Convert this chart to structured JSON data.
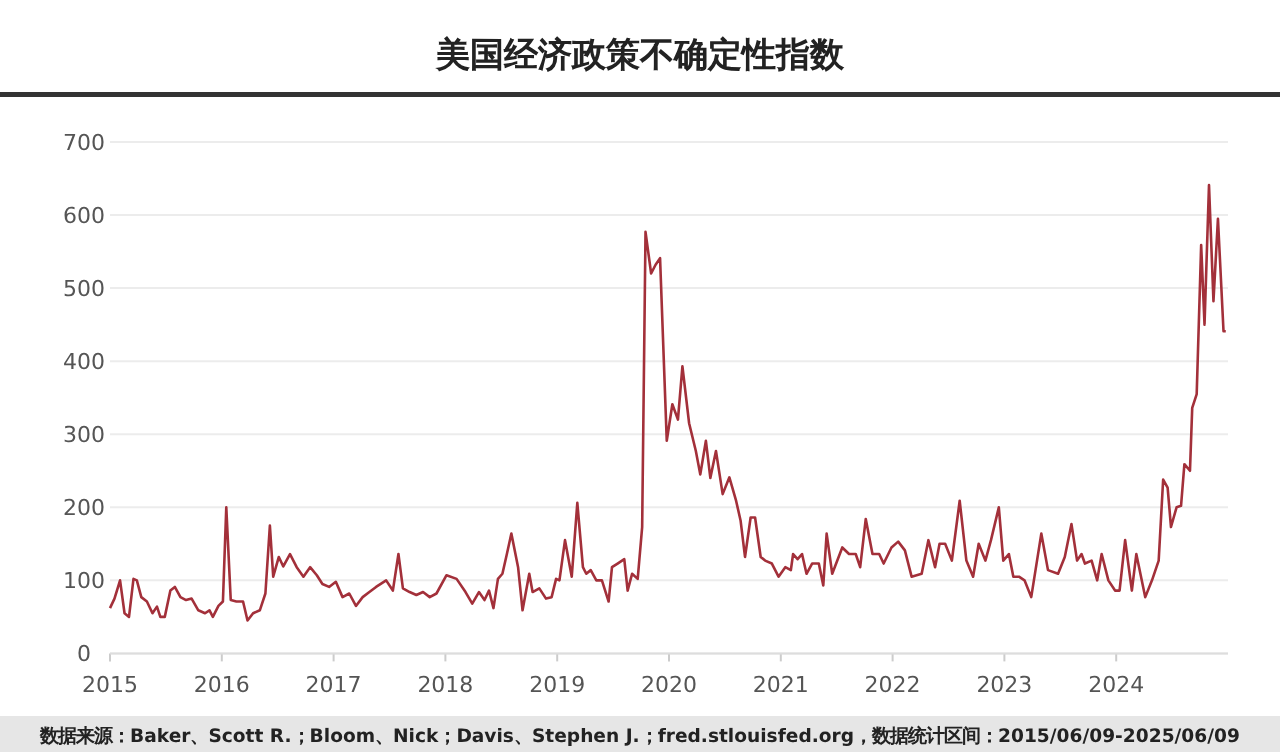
{
  "chart_data": {
    "type": "line",
    "title": "美国经济政策不确定性指数",
    "annotations": [
      "数据来源：Baker、Scott R.；Bloom、Nick；Davis、Stephen J.；fred.stlouisfed.org，数据统计区间：2015/06/09-2025/06/09"
    ],
    "x": [
      2015.0,
      2015.04,
      2015.09,
      2015.13,
      2015.17,
      2015.21,
      2015.24,
      2015.28,
      2015.33,
      2015.38,
      2015.42,
      2015.45,
      2015.49,
      2015.54,
      2015.58,
      2015.63,
      2015.68,
      2015.73,
      2015.79,
      2015.85,
      2015.89,
      2015.92,
      2015.97,
      2016.01,
      2016.04,
      2016.08,
      2016.13,
      2016.19,
      2016.23,
      2016.28,
      2016.34,
      2016.39,
      2016.43,
      2016.46,
      2016.51,
      2016.55,
      2016.61,
      2016.67,
      2016.73,
      2016.79,
      2016.85,
      2016.9,
      2016.96,
      2017.02,
      2017.08,
      2017.14,
      2017.2,
      2017.26,
      2017.32,
      2017.38,
      2017.47,
      2017.53,
      2017.58,
      2017.62,
      2017.68,
      2017.74,
      2017.8,
      2017.86,
      2017.92,
      2018.01,
      2018.1,
      2018.18,
      2018.24,
      2018.3,
      2018.35,
      2018.39,
      2018.43,
      2018.47,
      2018.51,
      2018.55,
      2018.59,
      2018.65,
      2018.69,
      2018.75,
      2018.78,
      2018.84,
      2018.9,
      2018.95,
      2018.99,
      2019.02,
      2019.07,
      2019.13,
      2019.18,
      2019.23,
      2019.26,
      2019.3,
      2019.35,
      2019.4,
      2019.46,
      2019.49,
      2019.54,
      2019.6,
      2019.63,
      2019.67,
      2019.72,
      2019.76,
      2019.79,
      2019.84,
      2019.88,
      2019.92,
      2019.98,
      2020.03,
      2020.08,
      2020.12,
      2020.18,
      2020.24,
      2020.28,
      2020.33,
      2020.37,
      2020.42,
      2020.48,
      2020.54,
      2020.6,
      2020.64,
      2020.68,
      2020.73,
      2020.77,
      2020.82,
      2020.86,
      2020.92,
      2020.98,
      2021.04,
      2021.09,
      2021.11,
      2021.15,
      2021.19,
      2021.23,
      2021.28,
      2021.34,
      2021.38,
      2021.41,
      2021.46,
      2021.55,
      2021.61,
      2021.67,
      2021.71,
      2021.76,
      2021.82,
      2021.88,
      2021.92,
      2021.99,
      2022.05,
      2022.11,
      2022.17,
      2022.26,
      2022.32,
      2022.38,
      2022.42,
      2022.47,
      2022.53,
      2022.6,
      2022.66,
      2022.72,
      2022.77,
      2022.83,
      2022.88,
      2022.95,
      2022.99,
      2023.04,
      2023.08,
      2023.13,
      2023.18,
      2023.24,
      2023.33,
      2023.39,
      2023.48,
      2023.54,
      2023.6,
      2023.65,
      2023.69,
      2023.72,
      2023.78,
      2023.83,
      2023.87,
      2023.93,
      2023.99,
      2024.03,
      2024.08,
      2024.14,
      2024.18,
      2024.26,
      2024.32,
      2024.38,
      2024.42,
      2024.46,
      2024.49,
      2024.54,
      2024.58,
      2024.61,
      2024.66,
      2024.68,
      2024.72,
      2024.76,
      2024.79,
      2024.83,
      2024.87,
      2024.91,
      2024.96,
      2024.98
    ],
    "values": [
      62,
      75,
      100,
      55,
      50,
      102,
      100,
      77,
      71,
      55,
      64,
      50,
      50,
      86,
      91,
      77,
      73,
      75,
      59,
      55,
      59,
      50,
      65,
      71,
      200,
      73,
      71,
      71,
      45,
      55,
      59,
      82,
      175,
      105,
      132,
      119,
      136,
      118,
      105,
      118,
      107,
      95,
      91,
      98,
      77,
      82,
      65,
      77,
      84,
      91,
      100,
      86,
      136,
      89,
      84,
      80,
      84,
      77,
      82,
      107,
      102,
      84,
      68,
      84,
      73,
      86,
      62,
      102,
      109,
      136,
      164,
      118,
      59,
      109,
      84,
      89,
      75,
      77,
      102,
      100,
      155,
      105,
      206,
      118,
      109,
      114,
      100,
      100,
      71,
      118,
      123,
      129,
      86,
      109,
      102,
      173,
      577,
      520,
      532,
      541,
      291,
      341,
      320,
      393,
      315,
      277,
      245,
      291,
      240,
      277,
      218,
      241,
      209,
      182,
      132,
      186,
      186,
      132,
      127,
      123,
      105,
      118,
      114,
      136,
      129,
      136,
      109,
      123,
      123,
      93,
      164,
      109,
      145,
      136,
      136,
      118,
      184,
      136,
      136,
      123,
      145,
      153,
      141,
      105,
      109,
      155,
      118,
      150,
      150,
      127,
      209,
      127,
      105,
      150,
      127,
      155,
      200,
      127,
      136,
      105,
      105,
      100,
      77,
      164,
      114,
      109,
      132,
      177,
      127,
      136,
      123,
      127,
      100,
      136,
      100,
      86,
      86,
      155,
      86,
      136,
      77,
      100,
      127,
      238,
      227,
      173,
      200,
      202,
      259,
      250,
      336,
      355,
      559,
      450,
      641,
      482,
      595,
      441,
      441
    ],
    "color": "#a3303a",
    "xlim": [
      2015,
      2025
    ],
    "xticks": [
      2015,
      2016,
      2017,
      2018,
      2019,
      2020,
      2021,
      2022,
      2023,
      2024
    ],
    "ylim": [
      0,
      700
    ],
    "yticks": [
      0,
      100,
      200,
      300,
      400,
      500,
      600,
      700
    ],
    "grid": "y",
    "line_style": "solid",
    "marker": "none"
  }
}
